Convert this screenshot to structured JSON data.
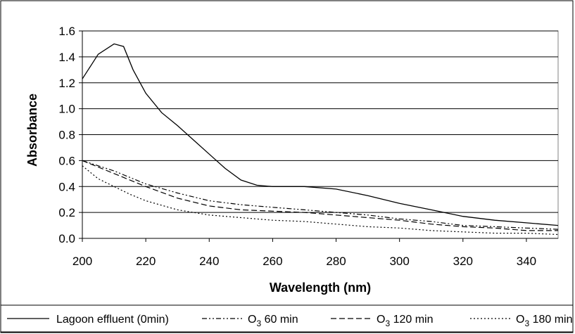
{
  "chart_data": {
    "type": "line",
    "xlabel": "Wavelength (nm)",
    "ylabel": "Absorbance",
    "xlim": [
      200,
      350
    ],
    "ylim": [
      0,
      1.6
    ],
    "x_ticks": [
      "200",
      "220",
      "240",
      "260",
      "280",
      "300",
      "320",
      "340"
    ],
    "y_ticks": [
      "0.0",
      "0.2",
      "0.4",
      "0.6",
      "0.8",
      "1.0",
      "1.2",
      "1.4",
      "1.6"
    ],
    "grid": "horizontal",
    "legend_position": "bottom",
    "series": [
      {
        "name": "Lagoon effluent (0min)",
        "dash": "solid",
        "x": [
          200,
          205,
          210,
          213,
          216,
          220,
          225,
          230,
          235,
          240,
          245,
          250,
          255,
          260,
          270,
          280,
          290,
          300,
          310,
          320,
          330,
          340,
          350
        ],
        "y": [
          1.23,
          1.42,
          1.5,
          1.48,
          1.3,
          1.12,
          0.97,
          0.87,
          0.76,
          0.65,
          0.54,
          0.45,
          0.41,
          0.4,
          0.4,
          0.38,
          0.33,
          0.27,
          0.22,
          0.17,
          0.14,
          0.12,
          0.1
        ]
      },
      {
        "name": "O3 60 min",
        "name_parts": [
          "O",
          "3",
          " 60 min"
        ],
        "dash": "dash-dot-dot",
        "x": [
          200,
          210,
          220,
          230,
          240,
          250,
          260,
          270,
          280,
          290,
          300,
          310,
          320,
          330,
          340,
          350
        ],
        "y": [
          0.6,
          0.52,
          0.42,
          0.35,
          0.29,
          0.26,
          0.24,
          0.22,
          0.2,
          0.18,
          0.15,
          0.13,
          0.1,
          0.09,
          0.08,
          0.07
        ]
      },
      {
        "name": "O3 120 min",
        "name_parts": [
          "O",
          "3",
          " 120 min"
        ],
        "dash": "dashed",
        "x": [
          200,
          210,
          220,
          230,
          240,
          250,
          260,
          270,
          280,
          290,
          300,
          310,
          320,
          330,
          340,
          350
        ],
        "y": [
          0.6,
          0.5,
          0.4,
          0.31,
          0.25,
          0.22,
          0.21,
          0.2,
          0.18,
          0.16,
          0.14,
          0.11,
          0.09,
          0.08,
          0.06,
          0.06
        ]
      },
      {
        "name": "O3 180 min",
        "name_parts": [
          "O",
          "3",
          " 180 min"
        ],
        "dash": "dotted",
        "x": [
          200,
          205,
          210,
          215,
          220,
          230,
          240,
          250,
          260,
          270,
          280,
          290,
          300,
          310,
          320,
          330,
          340,
          350
        ],
        "y": [
          0.56,
          0.46,
          0.4,
          0.34,
          0.29,
          0.22,
          0.18,
          0.16,
          0.14,
          0.13,
          0.11,
          0.09,
          0.08,
          0.06,
          0.05,
          0.04,
          0.04,
          0.03
        ]
      }
    ]
  }
}
